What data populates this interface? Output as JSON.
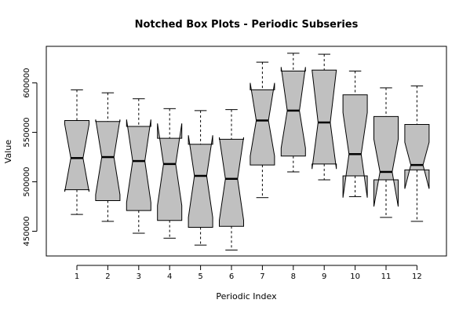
{
  "chart_data": {
    "type": "boxplot",
    "notched": true,
    "title": "Notched Box Plots - Periodic Subseries",
    "xlabel": "Periodic Index",
    "ylabel": "Value",
    "ylim": [
      425000,
      637000
    ],
    "yticks": [
      450000,
      500000,
      550000,
      600000
    ],
    "ytick_labels": [
      "450000",
      "500000",
      "550000",
      "600000"
    ],
    "categories": [
      "1",
      "2",
      "3",
      "4",
      "5",
      "6",
      "7",
      "8",
      "9",
      "10",
      "11",
      "12"
    ],
    "box_fill": "#c0c0c0",
    "boxes": [
      {
        "whisker_low": 467000,
        "q1": 492000,
        "median": 524000,
        "q3": 562000,
        "whisker_high": 593000,
        "notch_low": 490000,
        "notch_high": 558000
      },
      {
        "whisker_low": 460000,
        "q1": 481000,
        "median": 525000,
        "q3": 561000,
        "whisker_high": 590000,
        "notch_low": 487000,
        "notch_high": 563000
      },
      {
        "whisker_low": 448000,
        "q1": 471000,
        "median": 521000,
        "q3": 556000,
        "whisker_high": 584000,
        "notch_low": 479000,
        "notch_high": 563000
      },
      {
        "whisker_low": 443000,
        "q1": 461000,
        "median": 518000,
        "q3": 544000,
        "whisker_high": 574000,
        "notch_low": 476000,
        "notch_high": 559000
      },
      {
        "whisker_low": 436000,
        "q1": 454000,
        "median": 506000,
        "q3": 538000,
        "whisker_high": 572000,
        "notch_low": 464000,
        "notch_high": 547000
      },
      {
        "whisker_low": 431000,
        "q1": 455000,
        "median": 503000,
        "q3": 543000,
        "whisker_high": 573000,
        "notch_low": 461000,
        "notch_high": 545000
      },
      {
        "whisker_low": 484000,
        "q1": 517000,
        "median": 562000,
        "q3": 593000,
        "whisker_high": 621000,
        "notch_low": 526000,
        "notch_high": 600000
      },
      {
        "whisker_low": 510000,
        "q1": 526000,
        "median": 572000,
        "q3": 612000,
        "whisker_high": 630000,
        "notch_low": 534000,
        "notch_high": 616000
      },
      {
        "whisker_low": 502000,
        "q1": 518000,
        "median": 560000,
        "q3": 613000,
        "whisker_high": 629000,
        "notch_low": 513000,
        "notch_high": 613000
      },
      {
        "whisker_low": 485000,
        "q1": 506000,
        "median": 528000,
        "q3": 588000,
        "whisker_high": 612000,
        "notch_low": 484000,
        "notch_high": 570000
      },
      {
        "whisker_low": 464000,
        "q1": 502000,
        "median": 510000,
        "q3": 566000,
        "whisker_high": 595000,
        "notch_low": 475000,
        "notch_high": 543000
      },
      {
        "whisker_low": 460000,
        "q1": 512000,
        "median": 517000,
        "q3": 558000,
        "whisker_high": 597000,
        "notch_low": 493000,
        "notch_high": 540000
      }
    ]
  }
}
